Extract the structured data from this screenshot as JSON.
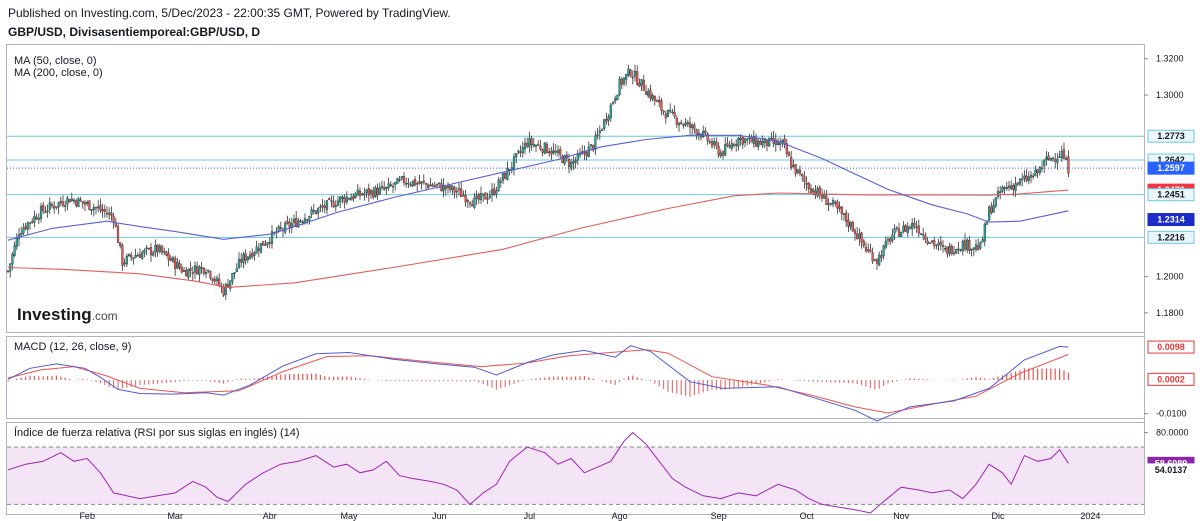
{
  "header": {
    "published": "Published on Investing.com, 5/Dec/2023 - 22:00:35 GMT, Powered by TradingView.",
    "symbol": "GBP/USD, Divisasentiemporeal:GBP/USD, D"
  },
  "watermark": "Investing.com",
  "colors": {
    "up": "#26a69a",
    "down": "#ef5350",
    "ma50": "#5b5fd6",
    "ma200": "#e85b5b",
    "hline": "#6fc8dd",
    "lastprice": "#2962ff",
    "macd": "#4f5bd5",
    "signal": "#ef5350",
    "rsi": "#9c27b0",
    "rsiband": "#f3e5f5"
  },
  "chart_data": {
    "type": "candlestick",
    "price": {
      "indicators": [
        "MA (50, close, 0)",
        "MA (200, close, 0)"
      ],
      "ylim": [
        1.17,
        1.327
      ],
      "yticks": [
        "1.3200",
        "1.3000",
        "1.2000",
        "1.1800"
      ],
      "hlines": [
        1.2773,
        1.2642,
        1.2451,
        1.2216
      ],
      "last_price": 1.2597,
      "tags": [
        {
          "value": 1.2773,
          "label": "1.2773",
          "style": "level"
        },
        {
          "value": 1.2642,
          "label": "1.2642",
          "style": "level"
        },
        {
          "value": 1.2597,
          "label": "1.2597",
          "style": "last"
        },
        {
          "value": 1.2476,
          "label": "1.2476",
          "style": "ma200"
        },
        {
          "value": 1.2451,
          "label": "1.2451",
          "style": "level"
        },
        {
          "value": 1.2314,
          "label": "1.2314",
          "style": "ma50"
        },
        {
          "value": 1.2216,
          "label": "1.2216",
          "style": "level"
        }
      ],
      "close_path": [
        [
          0,
          1.203
        ],
        [
          5,
          1.225
        ],
        [
          15,
          1.236
        ],
        [
          28,
          1.243
        ],
        [
          40,
          1.238
        ],
        [
          48,
          1.233
        ],
        [
          52,
          1.208
        ],
        [
          58,
          1.212
        ],
        [
          68,
          1.215
        ],
        [
          80,
          1.203
        ],
        [
          90,
          1.205
        ],
        [
          98,
          1.192
        ],
        [
          106,
          1.209
        ],
        [
          122,
          1.224
        ],
        [
          138,
          1.235
        ],
        [
          152,
          1.243
        ],
        [
          163,
          1.246
        ],
        [
          172,
          1.248
        ],
        [
          180,
          1.253
        ],
        [
          188,
          1.251
        ],
        [
          195,
          1.25
        ],
        [
          204,
          1.247
        ],
        [
          212,
          1.241
        ],
        [
          220,
          1.246
        ],
        [
          226,
          1.256
        ],
        [
          236,
          1.274
        ],
        [
          246,
          1.27
        ],
        [
          256,
          1.262
        ],
        [
          266,
          1.272
        ],
        [
          272,
          1.288
        ],
        [
          278,
          1.306
        ],
        [
          283,
          1.313
        ],
        [
          290,
          1.303
        ],
        [
          298,
          1.291
        ],
        [
          306,
          1.285
        ],
        [
          314,
          1.28
        ],
        [
          324,
          1.268
        ],
        [
          332,
          1.276
        ],
        [
          340,
          1.274
        ],
        [
          352,
          1.273
        ],
        [
          356,
          1.262
        ],
        [
          362,
          1.252
        ],
        [
          370,
          1.244
        ],
        [
          376,
          1.238
        ],
        [
          384,
          1.227
        ],
        [
          390,
          1.215
        ],
        [
          395,
          1.209
        ],
        [
          402,
          1.223
        ],
        [
          412,
          1.229
        ],
        [
          418,
          1.221
        ],
        [
          426,
          1.214
        ],
        [
          434,
          1.218
        ],
        [
          442,
          1.216
        ],
        [
          446,
          1.236
        ],
        [
          452,
          1.248
        ],
        [
          460,
          1.252
        ],
        [
          467,
          1.256
        ],
        [
          472,
          1.264
        ],
        [
          479,
          1.268
        ],
        [
          482,
          1.2597
        ]
      ],
      "ma50": [
        [
          0,
          1.22
        ],
        [
          20,
          1.2265
        ],
        [
          45,
          1.2305
        ],
        [
          60,
          1.2275
        ],
        [
          75,
          1.225
        ],
        [
          98,
          1.2205
        ],
        [
          120,
          1.2235
        ],
        [
          150,
          1.2355
        ],
        [
          175,
          1.2435
        ],
        [
          200,
          1.2505
        ],
        [
          225,
          1.2575
        ],
        [
          250,
          1.2645
        ],
        [
          270,
          1.2715
        ],
        [
          290,
          1.2755
        ],
        [
          310,
          1.2778
        ],
        [
          332,
          1.2778
        ],
        [
          350,
          1.2745
        ],
        [
          370,
          1.265
        ],
        [
          385,
          1.2565
        ],
        [
          400,
          1.248
        ],
        [
          420,
          1.2395
        ],
        [
          436,
          1.2345
        ],
        [
          446,
          1.23
        ],
        [
          460,
          1.2305
        ],
        [
          482,
          1.2362
        ]
      ],
      "ma200": [
        [
          0,
          1.205
        ],
        [
          25,
          1.204
        ],
        [
          60,
          1.2015
        ],
        [
          85,
          1.1975
        ],
        [
          100,
          1.194
        ],
        [
          130,
          1.1965
        ],
        [
          175,
          1.205
        ],
        [
          225,
          1.215
        ],
        [
          260,
          1.2265
        ],
        [
          300,
          1.2375
        ],
        [
          330,
          1.2445
        ],
        [
          350,
          1.246
        ],
        [
          390,
          1.245
        ],
        [
          430,
          1.245
        ],
        [
          446,
          1.2448
        ],
        [
          460,
          1.2455
        ],
        [
          482,
          1.2476
        ]
      ]
    },
    "macd": {
      "label": "MACD (12, 26, close, 9)",
      "ylim": [
        -0.011,
        0.0125
      ],
      "yticks": [
        "-0.0100"
      ],
      "tags": [
        {
          "value": 0.0098,
          "label": "0.0098",
          "style": "macd"
        },
        {
          "value": 0.0002,
          "label": "0.0002",
          "style": "macd"
        }
      ],
      "macd_line": [
        [
          0,
          0.0002
        ],
        [
          10,
          0.0035
        ],
        [
          22,
          0.0048
        ],
        [
          35,
          0.0035
        ],
        [
          42,
          0.0008
        ],
        [
          50,
          -0.0028
        ],
        [
          60,
          -0.004
        ],
        [
          75,
          -0.0042
        ],
        [
          90,
          -0.0038
        ],
        [
          98,
          -0.0045
        ],
        [
          110,
          -0.0015
        ],
        [
          125,
          0.0042
        ],
        [
          140,
          0.0078
        ],
        [
          155,
          0.0082
        ],
        [
          175,
          0.0062
        ],
        [
          195,
          0.0048
        ],
        [
          212,
          0.0038
        ],
        [
          222,
          0.0015
        ],
        [
          236,
          0.0052
        ],
        [
          248,
          0.0075
        ],
        [
          262,
          0.0088
        ],
        [
          276,
          0.0068
        ],
        [
          283,
          0.0102
        ],
        [
          292,
          0.0085
        ],
        [
          310,
          -0.0005
        ],
        [
          325,
          -0.0025
        ],
        [
          350,
          -0.002
        ],
        [
          370,
          -0.006
        ],
        [
          385,
          -0.009
        ],
        [
          395,
          -0.0122
        ],
        [
          410,
          -0.008
        ],
        [
          430,
          -0.0062
        ],
        [
          446,
          -0.0025
        ],
        [
          462,
          0.006
        ],
        [
          478,
          0.01
        ],
        [
          482,
          0.0098
        ]
      ],
      "signal_line": [
        [
          0,
          0.0006
        ],
        [
          15,
          0.003
        ],
        [
          30,
          0.004
        ],
        [
          45,
          0.0012
        ],
        [
          60,
          -0.0025
        ],
        [
          80,
          -0.0038
        ],
        [
          105,
          -0.0032
        ],
        [
          125,
          0.0025
        ],
        [
          145,
          0.007
        ],
        [
          165,
          0.0072
        ],
        [
          190,
          0.0055
        ],
        [
          215,
          0.004
        ],
        [
          235,
          0.005
        ],
        [
          255,
          0.0072
        ],
        [
          270,
          0.008
        ],
        [
          290,
          0.009
        ],
        [
          300,
          0.008
        ],
        [
          320,
          0.001
        ],
        [
          345,
          -0.0015
        ],
        [
          365,
          -0.0045
        ],
        [
          385,
          -0.008
        ],
        [
          400,
          -0.0098
        ],
        [
          420,
          -0.0072
        ],
        [
          440,
          -0.0048
        ],
        [
          460,
          0.002
        ],
        [
          482,
          0.0076
        ]
      ]
    },
    "rsi": {
      "label": "Índice de fuerza relativa (RSI por sus siglas en inglés) (14)",
      "ylim": [
        24,
        86
      ],
      "band": [
        30,
        70
      ],
      "yticks": [
        "80.0000"
      ],
      "tags": [
        {
          "value": 58.6089,
          "label": "58.6089",
          "style": "rsi"
        },
        {
          "value": 54.0137,
          "label": "54.0137",
          "style": "rsiplain"
        }
      ],
      "line": [
        [
          0,
          54
        ],
        [
          8,
          58
        ],
        [
          16,
          60
        ],
        [
          24,
          66
        ],
        [
          30,
          60
        ],
        [
          36,
          62
        ],
        [
          42,
          52
        ],
        [
          48,
          38
        ],
        [
          54,
          36
        ],
        [
          60,
          34
        ],
        [
          68,
          36
        ],
        [
          76,
          38
        ],
        [
          84,
          46
        ],
        [
          90,
          42
        ],
        [
          95,
          35
        ],
        [
          100,
          32
        ],
        [
          108,
          44
        ],
        [
          116,
          52
        ],
        [
          124,
          58
        ],
        [
          132,
          60
        ],
        [
          140,
          64
        ],
        [
          148,
          56
        ],
        [
          154,
          58
        ],
        [
          160,
          52
        ],
        [
          166,
          54
        ],
        [
          172,
          60
        ],
        [
          178,
          50
        ],
        [
          184,
          48
        ],
        [
          192,
          46
        ],
        [
          198,
          44
        ],
        [
          204,
          40
        ],
        [
          210,
          30
        ],
        [
          216,
          38
        ],
        [
          222,
          44
        ],
        [
          228,
          60
        ],
        [
          236,
          70
        ],
        [
          244,
          66
        ],
        [
          250,
          58
        ],
        [
          256,
          62
        ],
        [
          262,
          52
        ],
        [
          268,
          56
        ],
        [
          274,
          60
        ],
        [
          280,
          74
        ],
        [
          284,
          80
        ],
        [
          290,
          72
        ],
        [
          296,
          60
        ],
        [
          302,
          48
        ],
        [
          308,
          42
        ],
        [
          316,
          36
        ],
        [
          324,
          34
        ],
        [
          332,
          38
        ],
        [
          340,
          36
        ],
        [
          350,
          44
        ],
        [
          358,
          40
        ],
        [
          364,
          34
        ],
        [
          370,
          30
        ],
        [
          378,
          28
        ],
        [
          386,
          26
        ],
        [
          392,
          24
        ],
        [
          398,
          32
        ],
        [
          406,
          42
        ],
        [
          414,
          40
        ],
        [
          420,
          38
        ],
        [
          428,
          40
        ],
        [
          434,
          34
        ],
        [
          440,
          44
        ],
        [
          446,
          58
        ],
        [
          452,
          52
        ],
        [
          456,
          44
        ],
        [
          462,
          64
        ],
        [
          468,
          60
        ],
        [
          474,
          62
        ],
        [
          478,
          68
        ],
        [
          482,
          58.6
        ]
      ]
    },
    "x_axis": {
      "labels": [
        "Feb",
        "Mar",
        "Abr",
        "May",
        "Jun",
        "Jul",
        "Ago",
        "Sep",
        "Oct",
        "Nov",
        "Dic",
        "2024"
      ],
      "label_days": [
        36,
        76,
        119,
        155,
        196,
        237,
        278,
        323,
        363,
        406,
        450,
        492
      ]
    }
  }
}
